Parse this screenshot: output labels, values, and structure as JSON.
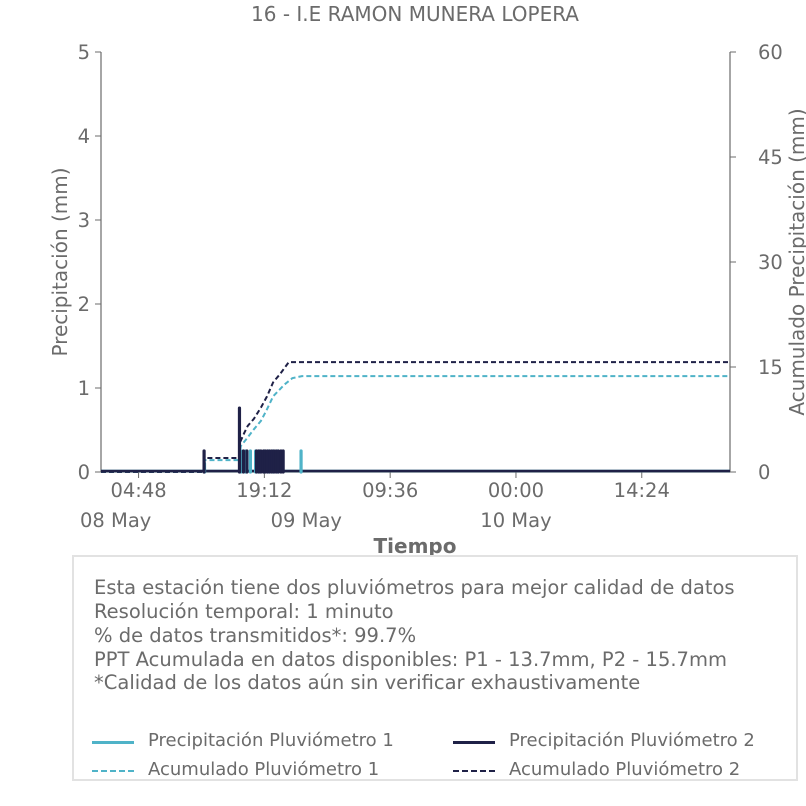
{
  "chart_data": {
    "type": "line",
    "title": "16 - I.E RAMON MUNERA LOPERA",
    "xlabel": "Tiempo",
    "ylabel": "Precipitación (mm)",
    "y2label": "Acumulado Precipitación (mm)",
    "ylim": [
      0,
      5
    ],
    "y2lim": [
      0,
      60
    ],
    "yticks": [
      "0",
      "1",
      "2",
      "3",
      "4",
      "5"
    ],
    "y2ticks": [
      "0",
      "15",
      "30",
      "45",
      "60"
    ],
    "x_unit": "hours from 08 May 00:00",
    "xlim": [
      0.5,
      72.5
    ],
    "xticks": [
      {
        "x": 4.8,
        "label": "04:48"
      },
      {
        "x": 19.2,
        "label": "19:12"
      },
      {
        "x": 33.6,
        "label": "09:36"
      },
      {
        "x": 48.0,
        "label": "00:00"
      },
      {
        "x": 62.4,
        "label": "14:24"
      }
    ],
    "xdates": [
      {
        "x": 0,
        "label": "08 May"
      },
      {
        "x": 24,
        "label": "09 May"
      },
      {
        "x": 48,
        "label": "10 May"
      }
    ],
    "grid": false,
    "series": [
      {
        "name": "Precipitación Pluviómetro 1",
        "axis": "left",
        "style": "bar",
        "color": "#4fb3c8",
        "x": [
          12.35,
          16.5,
          17.05,
          17.6,
          18.2,
          18.65,
          19.2,
          19.65,
          20.2,
          20.7,
          23.4
        ],
        "values": [
          0.1,
          0.25,
          0.25,
          0.25,
          0.25,
          0.25,
          0.25,
          0.25,
          0.25,
          0.25,
          0.25
        ]
      },
      {
        "name": "Precipitación Pluviómetro 2",
        "axis": "left",
        "style": "bar",
        "color": "#1f2147",
        "x": [
          12.3,
          16.35,
          16.8,
          17.2,
          18.3,
          18.55,
          18.8,
          19.1,
          19.3,
          19.55,
          19.8,
          20.05,
          20.3,
          20.55,
          20.8,
          21.1,
          21.35
        ],
        "values": [
          0.25,
          0.76,
          0.25,
          0.25,
          0.25,
          0.25,
          0.25,
          0.25,
          0.25,
          0.25,
          0.25,
          0.25,
          0.25,
          0.25,
          0.25,
          0.25,
          0.25
        ]
      },
      {
        "name": "Acumulado Pluviómetro 1",
        "axis": "right",
        "style": "dashed",
        "color": "#4fb3c8",
        "x": [
          0.5,
          12.3,
          12.35,
          16.3,
          16.5,
          17.2,
          18.0,
          18.8,
          19.4,
          20.2,
          21.5,
          22.4,
          23.5,
          26,
          72.5
        ],
        "values": [
          0,
          0,
          1.7,
          1.7,
          3.7,
          4.8,
          6.1,
          7.3,
          8.7,
          10.8,
          12.5,
          13.4,
          13.7,
          13.7,
          13.7
        ]
      },
      {
        "name": "Acumulado Pluviómetro 2",
        "axis": "right",
        "style": "dashed",
        "color": "#1f2147",
        "x": [
          0.5,
          12.3,
          12.35,
          16.3,
          16.4,
          16.9,
          17.3,
          18.0,
          18.8,
          19.5,
          20.2,
          21.0,
          22.0,
          72.5
        ],
        "values": [
          0,
          0,
          2.0,
          2.0,
          4.2,
          5.6,
          6.6,
          7.6,
          9.2,
          10.8,
          12.8,
          14.0,
          15.7,
          15.7
        ]
      }
    ]
  },
  "info": {
    "lines": [
      "Esta estación tiene dos pluviómetros para mejor calidad de datos",
      "Resolución temporal: 1 minuto",
      "% de datos transmitidos*: 99.7%",
      "PPT Acumulada en datos disponibles: P1 - 13.7mm, P2 - 15.7mm",
      "*Calidad de los datos aún sin verificar exhaustivamente"
    ]
  },
  "legend": {
    "items": [
      {
        "label": "Precipitación Pluviómetro 1",
        "color": "#4fb3c8",
        "style": "solid"
      },
      {
        "label": "Precipitación Pluviómetro 2",
        "color": "#1f2147",
        "style": "solid"
      },
      {
        "label": "Acumulado Pluviómetro 1",
        "color": "#4fb3c8",
        "style": "dashed"
      },
      {
        "label": "Acumulado Pluviómetro 2",
        "color": "#1f2147",
        "style": "dashed"
      }
    ]
  }
}
